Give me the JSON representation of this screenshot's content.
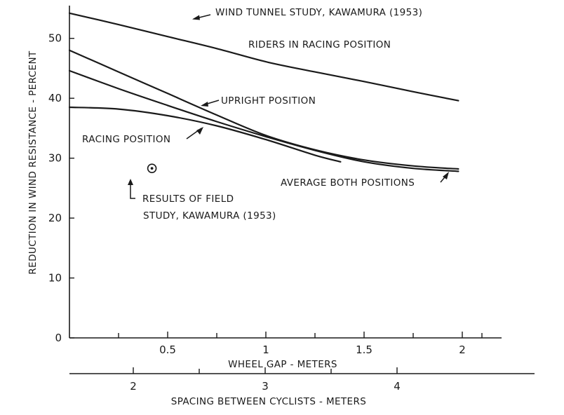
{
  "chart_data": {
    "type": "line",
    "title": "",
    "xlabel": "WHEEL GAP - METERS",
    "ylabel": "REDUCTION IN WIND RESISTANCE - PERCENT",
    "x2label": "SPACING BETWEEN CYCLISTS - METERS",
    "xlim": [
      0.0,
      2.2
    ],
    "ylim": [
      0,
      55
    ],
    "x_ticks": [
      0.5,
      1,
      1.5,
      2
    ],
    "x_tick_labels": [
      "0.5",
      "1",
      "1.5",
      "2"
    ],
    "y_ticks": [
      0,
      10,
      20,
      30,
      40,
      50
    ],
    "y_tick_labels": [
      "0",
      "10",
      "20",
      "30",
      "40",
      "50"
    ],
    "x2_ticks": [
      2,
      3,
      4
    ],
    "x2_tick_labels": [
      "2",
      "3",
      "4"
    ],
    "grid": false,
    "series": [
      {
        "key": "wind_tunnel",
        "x": [
          0.0,
          0.25,
          0.5,
          0.75,
          1.0,
          1.25,
          1.5,
          1.75,
          1.98
        ],
        "y": [
          54.2,
          52.3,
          50.3,
          48.3,
          46.1,
          44.4,
          42.8,
          41.1,
          39.6
        ]
      },
      {
        "key": "upright",
        "x": [
          0.0,
          0.25,
          0.5,
          0.75,
          1.0,
          1.25,
          1.5,
          1.75,
          1.98
        ],
        "y": [
          48.0,
          44.4,
          40.8,
          37.2,
          33.8,
          31.4,
          29.7,
          28.7,
          28.2
        ]
      },
      {
        "key": "average",
        "x": [
          0.0,
          0.25,
          0.5,
          0.75,
          1.0,
          1.25,
          1.5,
          1.75,
          1.98
        ],
        "y": [
          44.6,
          41.6,
          38.8,
          36.1,
          33.6,
          31.3,
          29.4,
          28.3,
          27.8
        ]
      },
      {
        "key": "racing",
        "x": [
          0.0,
          0.25,
          0.5,
          0.75,
          1.0,
          1.25,
          1.38
        ],
        "y": [
          38.5,
          38.2,
          37.1,
          35.4,
          33.1,
          30.5,
          29.4
        ]
      }
    ],
    "field_point": {
      "x": 0.42,
      "y": 28.3
    },
    "annotations": {
      "wind_tunnel_1": "WIND TUNNEL STUDY, KAWAMURA (1953)",
      "wind_tunnel_2": "RIDERS IN RACING POSITION",
      "upright": "UPRIGHT POSITION",
      "racing": "RACING POSITION",
      "average": "AVERAGE BOTH POSITIONS",
      "field_1": "RESULTS OF FIELD",
      "field_2": "STUDY, KAWAMURA (1953)"
    }
  }
}
